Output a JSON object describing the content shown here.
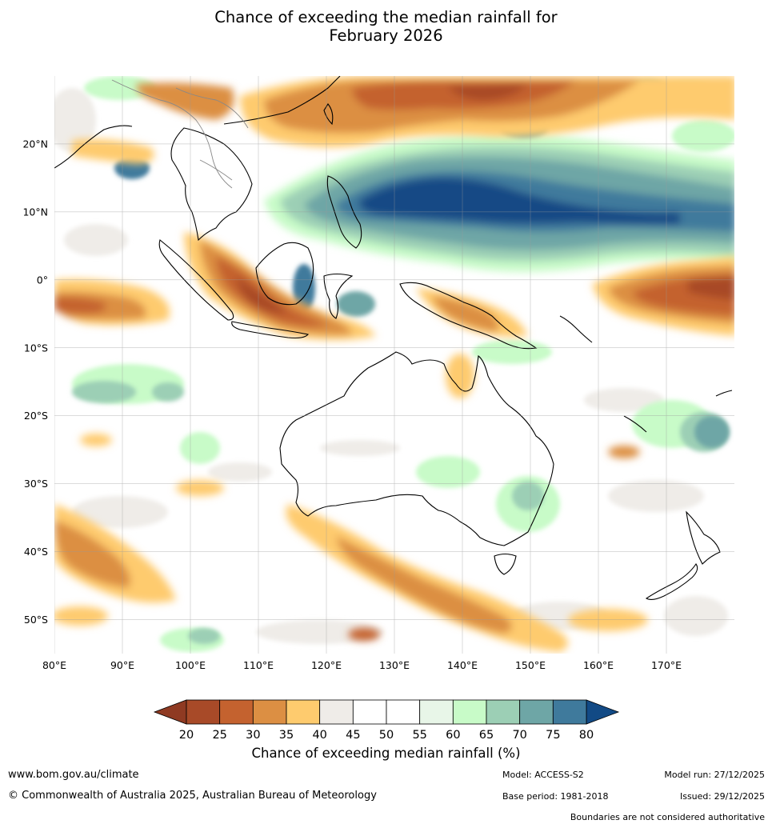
{
  "title": {
    "line1": "Chance of exceeding the median rainfall for",
    "line2": "February 2026"
  },
  "axes": {
    "lat_labels": [
      "20°N",
      "10°N",
      "0°",
      "10°S",
      "20°S",
      "30°S",
      "40°S",
      "50°S"
    ],
    "lat_values": [
      20,
      10,
      0,
      -10,
      -20,
      -30,
      -40,
      -50
    ],
    "lon_labels": [
      "80°E",
      "90°E",
      "100°E",
      "110°E",
      "120°E",
      "130°E",
      "140°E",
      "150°E",
      "160°E",
      "170°E"
    ],
    "lon_values": [
      80,
      90,
      100,
      110,
      120,
      130,
      140,
      150,
      160,
      170
    ],
    "lon_range": [
      80,
      180
    ],
    "lat_range": [
      -55,
      30
    ],
    "grid": true
  },
  "colorbar": {
    "label": "Chance of exceeding median rainfall (%)",
    "ticks": [
      "20",
      "25",
      "30",
      "35",
      "40",
      "45",
      "50",
      "55",
      "60",
      "65",
      "70",
      "75",
      "80"
    ],
    "colors": [
      "#a84a28",
      "#c4622f",
      "#dc8f43",
      "#fecb6e",
      "#efece8",
      "#ffffff",
      "#ffffff",
      "#e8f6e8",
      "#c8fbc8",
      "#9ccfb5",
      "#6ea6a6",
      "#3f7a9c"
    ],
    "under_color": "#8f3a22",
    "over_color": "#124a85"
  },
  "footer": {
    "website": "www.bom.gov.au/climate",
    "copyright": "© Commonwealth of Australia 2025, Australian Bureau of Meteorology",
    "model": "Model: ACCESS-S2",
    "base_period": "Base period: 1981-2018",
    "model_run": "Model run: 27/12/2025",
    "issued": "Issued: 29/12/2025",
    "disclaimer": "Boundaries are not considered authoritative"
  }
}
